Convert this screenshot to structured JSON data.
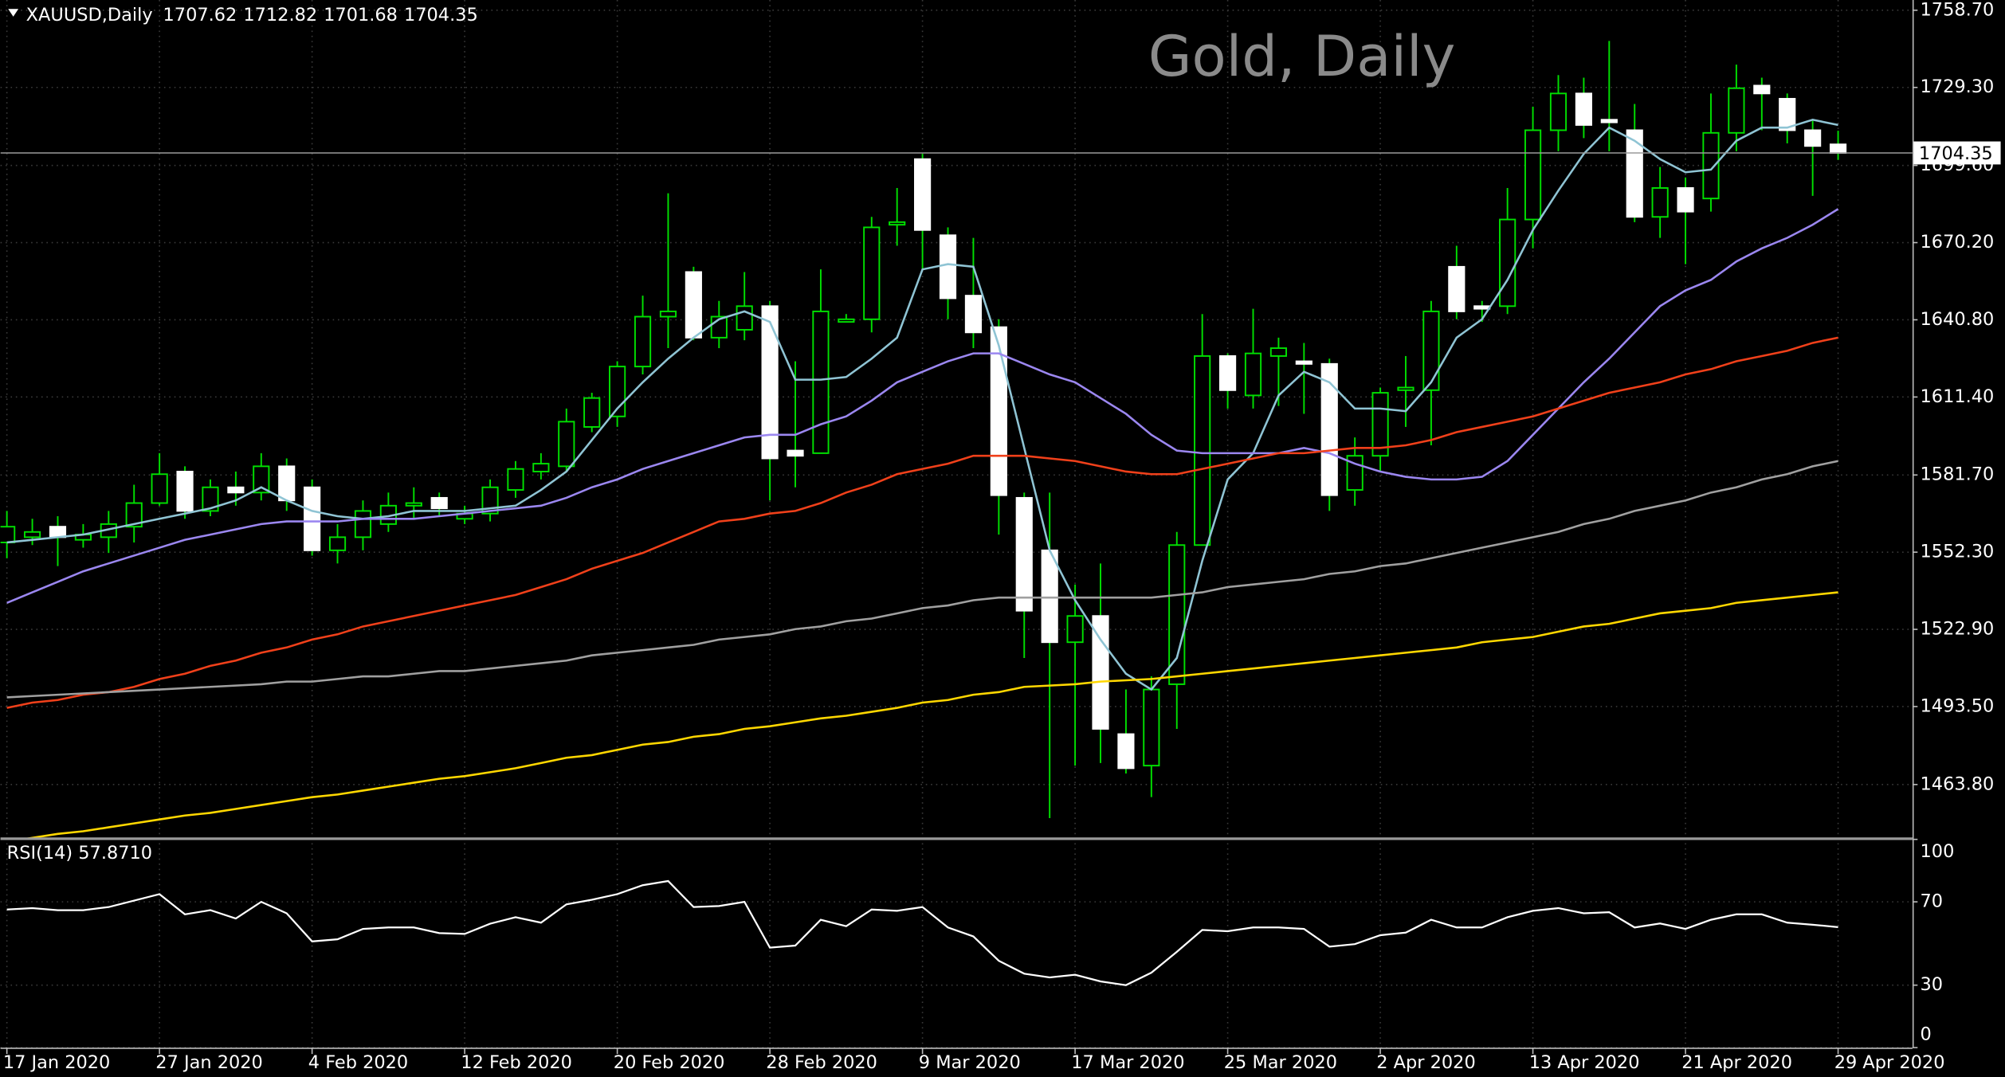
{
  "chart_data": [
    {
      "type": "candlestick",
      "symbol": "XAUUSD,Daily",
      "title": "Gold, Daily",
      "categories": [
        "17 Jan 2020",
        null,
        null,
        null,
        null,
        null,
        "27 Jan 2020",
        null,
        null,
        null,
        null,
        null,
        "4 Feb 2020",
        null,
        null,
        null,
        null,
        null,
        "12 Feb 2020",
        null,
        null,
        null,
        null,
        null,
        "20 Feb 2020",
        null,
        null,
        null,
        null,
        null,
        "28 Feb 2020",
        null,
        null,
        null,
        null,
        null,
        "9 Mar 2020",
        null,
        null,
        null,
        null,
        null,
        "17 Mar 2020",
        null,
        null,
        null,
        null,
        null,
        "25 Mar 2020",
        null,
        null,
        null,
        null,
        null,
        "2 Apr 2020",
        null,
        null,
        null,
        null,
        null,
        "13 Apr 2020",
        null,
        null,
        null,
        null,
        null,
        "21 Apr 2020",
        null,
        null,
        null,
        null,
        null,
        "29 Apr 2020"
      ],
      "open": [
        1556,
        1558,
        1562,
        1557,
        1558,
        1562,
        1571,
        1583,
        1568,
        1577,
        1575,
        1585,
        1577,
        1553,
        1558,
        1563,
        1570,
        1573,
        1565,
        1567,
        1576,
        1583,
        1585,
        1600,
        1604,
        1623,
        1642,
        1659,
        1634,
        1637,
        1646,
        1591,
        1590,
        1640,
        1641,
        1677,
        1702,
        1673,
        1650,
        1638,
        1573,
        1553,
        1518,
        1528,
        1483,
        1471,
        1502,
        1555,
        1627,
        1612,
        1627,
        1625,
        1624,
        1576,
        1589,
        1614,
        1614,
        1661,
        1646,
        1646,
        1679,
        1713,
        1727,
        1717,
        1713,
        1680,
        1691,
        1687,
        1712,
        1730,
        1725,
        1713,
        1707.62
      ],
      "high": [
        1568,
        1565,
        1566,
        1563,
        1568,
        1578,
        1590,
        1585,
        1580,
        1583,
        1590,
        1588,
        1580,
        1563,
        1572,
        1575,
        1577,
        1575,
        1570,
        1580,
        1587,
        1590,
        1607,
        1613,
        1625,
        1650,
        1689,
        1661,
        1648,
        1659,
        1648,
        1625,
        1660,
        1643,
        1680,
        1691,
        1704,
        1676,
        1672,
        1641,
        1575,
        1575,
        1540,
        1548,
        1500,
        1505,
        1560,
        1643,
        1628,
        1645,
        1634,
        1632,
        1626,
        1596,
        1615,
        1627,
        1648,
        1669,
        1648,
        1691,
        1722,
        1734,
        1733,
        1747,
        1723,
        1699,
        1695,
        1727,
        1738,
        1733,
        1727,
        1717,
        1712.82
      ],
      "low": [
        1550,
        1555,
        1547,
        1554,
        1552,
        1556,
        1570,
        1565,
        1566,
        1570,
        1572,
        1568,
        1551,
        1548,
        1553,
        1560,
        1565,
        1566,
        1563,
        1564,
        1573,
        1580,
        1583,
        1598,
        1600,
        1620,
        1630,
        1633,
        1630,
        1633,
        1572,
        1577,
        1590,
        1640,
        1636,
        1669,
        1660,
        1641,
        1630,
        1559,
        1512,
        1451,
        1471,
        1472,
        1468,
        1459,
        1485,
        1555,
        1607,
        1607,
        1608,
        1605,
        1568,
        1570,
        1583,
        1600,
        1593,
        1641,
        1640,
        1643,
        1668,
        1705,
        1710,
        1705,
        1678,
        1672,
        1662,
        1682,
        1705,
        1713,
        1708,
        1688,
        1701.68
      ],
      "close": [
        1562,
        1560,
        1558,
        1559,
        1563,
        1571,
        1582,
        1568,
        1577,
        1575,
        1585,
        1572,
        1553,
        1558,
        1568,
        1570,
        1571,
        1569,
        1567,
        1577,
        1584,
        1586,
        1602,
        1611,
        1623,
        1642,
        1644,
        1634,
        1642,
        1646,
        1588,
        1589,
        1644,
        1641,
        1676,
        1678,
        1675,
        1649,
        1636,
        1574,
        1530,
        1518,
        1528,
        1485,
        1470,
        1500,
        1555,
        1627,
        1614,
        1628,
        1630,
        1624,
        1574,
        1589,
        1613,
        1615,
        1644,
        1644,
        1645,
        1679,
        1713,
        1727,
        1715,
        1716,
        1680,
        1691,
        1682,
        1712,
        1729,
        1727,
        1713,
        1707,
        1704.35
      ],
      "up_color": "#00e000",
      "down_color": "#ffffff",
      "wick_color": "#00e000",
      "series": [
        {
          "color": "#8fc4d4",
          "values": [
            1556,
            1557,
            1558,
            1559,
            1561,
            1563,
            1565,
            1567,
            1569,
            1572,
            1577,
            1572,
            1568,
            1566,
            1565,
            1566,
            1568,
            1568,
            1568,
            1569,
            1570,
            1576,
            1583,
            1595,
            1607,
            1617,
            1626,
            1634,
            1641,
            1644,
            1640,
            1618,
            1618,
            1619,
            1626,
            1634,
            1660,
            1662,
            1661,
            1631,
            1592,
            1553,
            1534,
            1519,
            1506,
            1500,
            1512,
            1549,
            1580,
            1590,
            1612,
            1621,
            1617,
            1607,
            1607,
            1606,
            1617,
            1634,
            1641,
            1656,
            1675,
            1690,
            1704,
            1714,
            1709,
            1702,
            1697,
            1698,
            1709,
            1714,
            1714,
            1717,
            1715
          ]
        },
        {
          "color": "#9b87f0",
          "values": [
            1533,
            1537,
            1541,
            1545,
            1548,
            1551,
            1554,
            1557,
            1559,
            1561,
            1563,
            1564,
            1564,
            1564,
            1565,
            1565,
            1565,
            1566,
            1567,
            1568,
            1569,
            1570,
            1573,
            1577,
            1580,
            1584,
            1587,
            1590,
            1593,
            1596,
            1597,
            1597,
            1601,
            1604,
            1610,
            1617,
            1621,
            1625,
            1628,
            1628,
            1624,
            1620,
            1617,
            1611,
            1605,
            1597,
            1591,
            1590,
            1590,
            1590,
            1590,
            1592,
            1590,
            1586,
            1583,
            1581,
            1580,
            1580,
            1581,
            1587,
            1597,
            1607,
            1617,
            1626,
            1636,
            1646,
            1652,
            1656,
            1663,
            1668,
            1672,
            1677,
            1683
          ]
        },
        {
          "color": "#f0401a",
          "values": [
            1493,
            1495,
            1496,
            1498,
            1499,
            1501,
            1504,
            1506,
            1509,
            1511,
            1514,
            1516,
            1519,
            1521,
            1524,
            1526,
            1528,
            1530,
            1532,
            1534,
            1536,
            1539,
            1542,
            1546,
            1549,
            1552,
            1556,
            1560,
            1564,
            1565,
            1567,
            1568,
            1571,
            1575,
            1578,
            1582,
            1584,
            1586,
            1589,
            1589,
            1589,
            1588,
            1587,
            1585,
            1583,
            1582,
            1582,
            1584,
            1586,
            1588,
            1590,
            1590,
            1591,
            1592,
            1592,
            1593,
            1595,
            1598,
            1600,
            1602,
            1604,
            1607,
            1610,
            1613,
            1615,
            1617,
            1620,
            1622,
            1625,
            1627,
            1629,
            1632,
            1634
          ]
        },
        {
          "color": "#a0a0a0",
          "values": [
            1497,
            1497.5,
            1498,
            1498.5,
            1499,
            1499.5,
            1500,
            1500.5,
            1501,
            1501.5,
            1502,
            1503,
            1503,
            1504,
            1505,
            1505,
            1506,
            1507,
            1507,
            1508,
            1509,
            1510,
            1511,
            1513,
            1514,
            1515,
            1516,
            1517,
            1519,
            1520,
            1521,
            1523,
            1524,
            1526,
            1527,
            1529,
            1531,
            1532,
            1534,
            1535,
            1535,
            1535,
            1535,
            1535,
            1535,
            1535,
            1536,
            1537,
            1539,
            1540,
            1541,
            1542,
            1544,
            1545,
            1547,
            1548,
            1550,
            1552,
            1554,
            1556,
            1558,
            1560,
            1563,
            1565,
            1568,
            1570,
            1572,
            1575,
            1577,
            1580,
            1582,
            1585,
            1587
          ]
        },
        {
          "color": "#ffd700",
          "values": [
            1442,
            1443.5,
            1445,
            1446,
            1447.5,
            1449,
            1450.5,
            1452,
            1453,
            1454.5,
            1456,
            1457.5,
            1459,
            1460,
            1461.5,
            1463,
            1464.5,
            1466,
            1467,
            1468.5,
            1470,
            1472,
            1474,
            1475,
            1477,
            1479,
            1480,
            1482,
            1483,
            1485,
            1486,
            1487.5,
            1489,
            1490,
            1491.5,
            1493,
            1495,
            1496,
            1498,
            1499,
            1501,
            1501.5,
            1502,
            1503,
            1503.5,
            1504,
            1505,
            1506,
            1507,
            1508,
            1509,
            1510,
            1511,
            1512,
            1513,
            1514,
            1515,
            1516,
            1518,
            1519,
            1520,
            1522,
            1524,
            1525,
            1527,
            1529,
            1530,
            1531,
            1533,
            1534,
            1535,
            1536,
            1537
          ]
        }
      ],
      "ylim": [
        1443.4,
        1762.6
      ],
      "yticks": [
        {
          "value": 1758.7,
          "label": "1758.70"
        },
        {
          "value": 1729.3,
          "label": "1729.30"
        },
        {
          "value": 1699.6,
          "label": "1699.60"
        },
        {
          "value": 1670.2,
          "label": "1670.20"
        },
        {
          "value": 1640.8,
          "label": "1640.80"
        },
        {
          "value": 1611.4,
          "label": "1611.40"
        },
        {
          "value": 1581.7,
          "label": "1581.70"
        },
        {
          "value": 1552.3,
          "label": "1552.30"
        },
        {
          "value": 1522.9,
          "label": "1522.90"
        },
        {
          "value": 1493.5,
          "label": "1493.50"
        },
        {
          "value": 1463.8,
          "label": "1463.80"
        }
      ],
      "grid": true
    },
    {
      "type": "line",
      "title": "RSI(14) 57.8710",
      "color": "#ffffff",
      "values": [
        66.3,
        67,
        66,
        66,
        67.5,
        70.6,
        73.7,
        64,
        66,
        62,
        70,
        64.5,
        51,
        52,
        57,
        57.7,
        57.7,
        55,
        54.6,
        59.5,
        62.6,
        60,
        68.8,
        71,
        73.7,
        78,
        80,
        67.5,
        68,
        70,
        48,
        49,
        61.4,
        58.3,
        66.3,
        65.7,
        67.5,
        57.7,
        53.4,
        41.7,
        35.5,
        33.7,
        35,
        31.8,
        30,
        36,
        46,
        56.5,
        55.9,
        57.7,
        57.7,
        57,
        48.5,
        49.7,
        54,
        55.2,
        61.4,
        57.7,
        57.7,
        62.6,
        65.7,
        67,
        64.5,
        65,
        57.7,
        59.6,
        57,
        61.4,
        64,
        64,
        60,
        59,
        57.871
      ],
      "ylim": [
        0,
        100
      ],
      "yticks": [
        0,
        30,
        70,
        100
      ]
    }
  ]
}
